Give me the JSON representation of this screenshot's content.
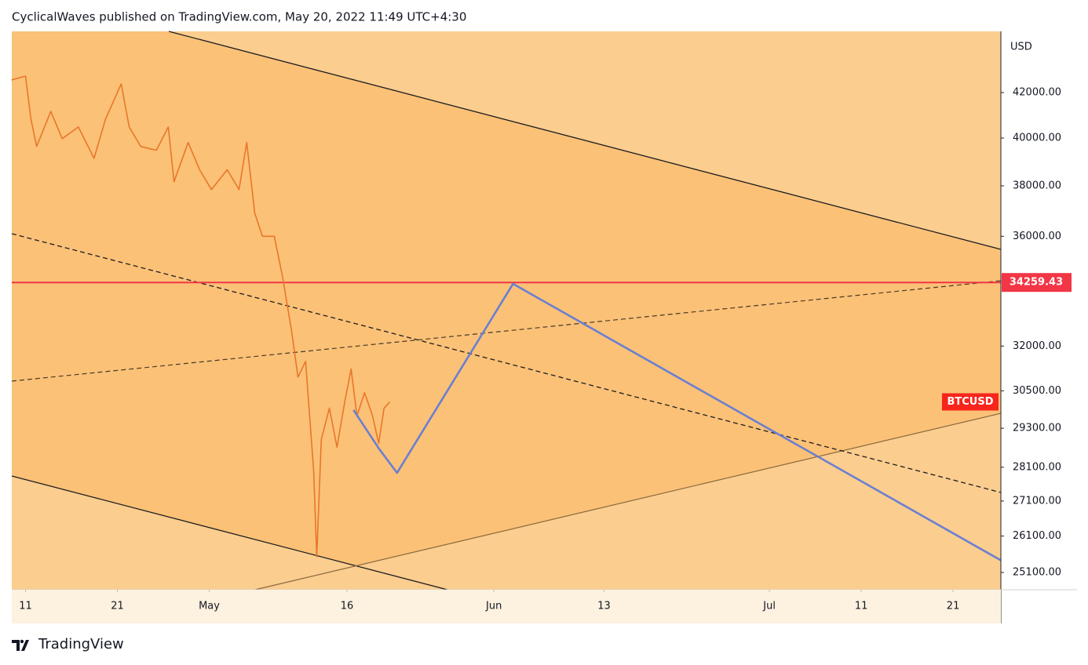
{
  "header": "CyclicalWaves published on TradingView.com, May 20, 2022 11:49 UTC+4:30",
  "footer": "TradingView",
  "chart_data": {
    "type": "line",
    "log_scale": true,
    "grid": false,
    "y_unit": "USD",
    "xlim": [
      "2022-04-09T12:00",
      "2022-07-26T05:00"
    ],
    "ylim": [
      24640,
      44850
    ],
    "yticks": [
      {
        "value": 42000,
        "label": "42000.00"
      },
      {
        "value": 40000,
        "label": "40000.00"
      },
      {
        "value": 38000,
        "label": "38000.00"
      },
      {
        "value": 36000,
        "label": "36000.00"
      },
      {
        "value": 32000,
        "label": "32000.00"
      },
      {
        "value": 30500,
        "label": "30500.00"
      },
      {
        "value": 29300,
        "label": "29300.00"
      },
      {
        "value": 28100,
        "label": "28100.00"
      },
      {
        "value": 27100,
        "label": "27100.00"
      },
      {
        "value": 26100,
        "label": "26100.00"
      },
      {
        "value": 25100,
        "label": "25100.00"
      }
    ],
    "xticks": [
      {
        "value": "2022-04-11T00:00",
        "label": "11"
      },
      {
        "value": "2022-04-21T00:00",
        "label": "21"
      },
      {
        "value": "2022-05-01T00:00",
        "label": "May"
      },
      {
        "value": "2022-05-16T00:00",
        "label": "16"
      },
      {
        "value": "2022-06-01T00:00",
        "label": "Jun"
      },
      {
        "value": "2022-06-13T00:00",
        "label": "13"
      },
      {
        "value": "2022-07-01T00:00",
        "label": "Jul"
      },
      {
        "value": "2022-07-11T00:00",
        "label": "11"
      },
      {
        "value": "2022-07-21T00:00",
        "label": "21"
      }
    ],
    "price_line": {
      "value": 34259.43,
      "color": "#f23645"
    },
    "series": [
      {
        "name": "BTCUSD",
        "color": "#e8772a",
        "label_color": "#f7251b",
        "x": [
          "2022-04-09T11:00",
          "2022-04-11T00:00",
          "2022-04-11T14:00",
          "2022-04-12T05:00",
          "2022-04-13T18:00",
          "2022-04-15T00:00",
          "2022-04-16T18:00",
          "2022-04-18T11:00",
          "2022-04-19T17:00",
          "2022-04-21T10:00",
          "2022-04-22T07:00",
          "2022-04-23T13:00",
          "2022-04-25T06:00",
          "2022-04-26T13:00",
          "2022-04-27T04:00",
          "2022-04-28T17:00",
          "2022-04-29T23:00",
          "2022-05-01T06:00",
          "2022-05-02T23:00",
          "2022-05-04T06:00",
          "2022-05-05T02:00",
          "2022-05-05T23:00",
          "2022-05-06T19:00",
          "2022-05-08T02:00",
          "2022-05-08T23:00",
          "2022-05-09T23:00",
          "2022-05-10T16:00",
          "2022-05-11T12:00",
          "2022-05-12T09:00",
          "2022-05-12T17:00",
          "2022-05-13T05:00",
          "2022-05-14T02:00",
          "2022-05-14T22:00",
          "2022-05-15T19:00",
          "2022-05-16T11:00",
          "2022-05-17T02:00",
          "2022-05-17T22:00",
          "2022-05-18T19:00",
          "2022-05-19T11:00",
          "2022-05-20T01:00",
          "2022-05-20T16:00"
        ],
        "values": [
          42570,
          42750,
          40820,
          39640,
          41160,
          39970,
          40480,
          39140,
          40820,
          42390,
          40480,
          39640,
          39480,
          40480,
          38170,
          39810,
          38660,
          37850,
          38660,
          37850,
          39810,
          36910,
          36000,
          36000,
          34520,
          32550,
          30950,
          31480,
          27990,
          25530,
          28950,
          29940,
          28710,
          30190,
          31220,
          29690,
          30440,
          29690,
          28830,
          29940,
          30140
        ]
      },
      {
        "color": "#6b7fd1",
        "x": [
          "2022-05-16T17:00",
          "2022-05-19T12:00",
          "2022-05-21T11:00",
          "2022-06-03T02:00",
          "2022-07-26T05:00"
        ],
        "values": [
          29880,
          28660,
          27930,
          34210,
          25430
        ]
      }
    ]
  }
}
